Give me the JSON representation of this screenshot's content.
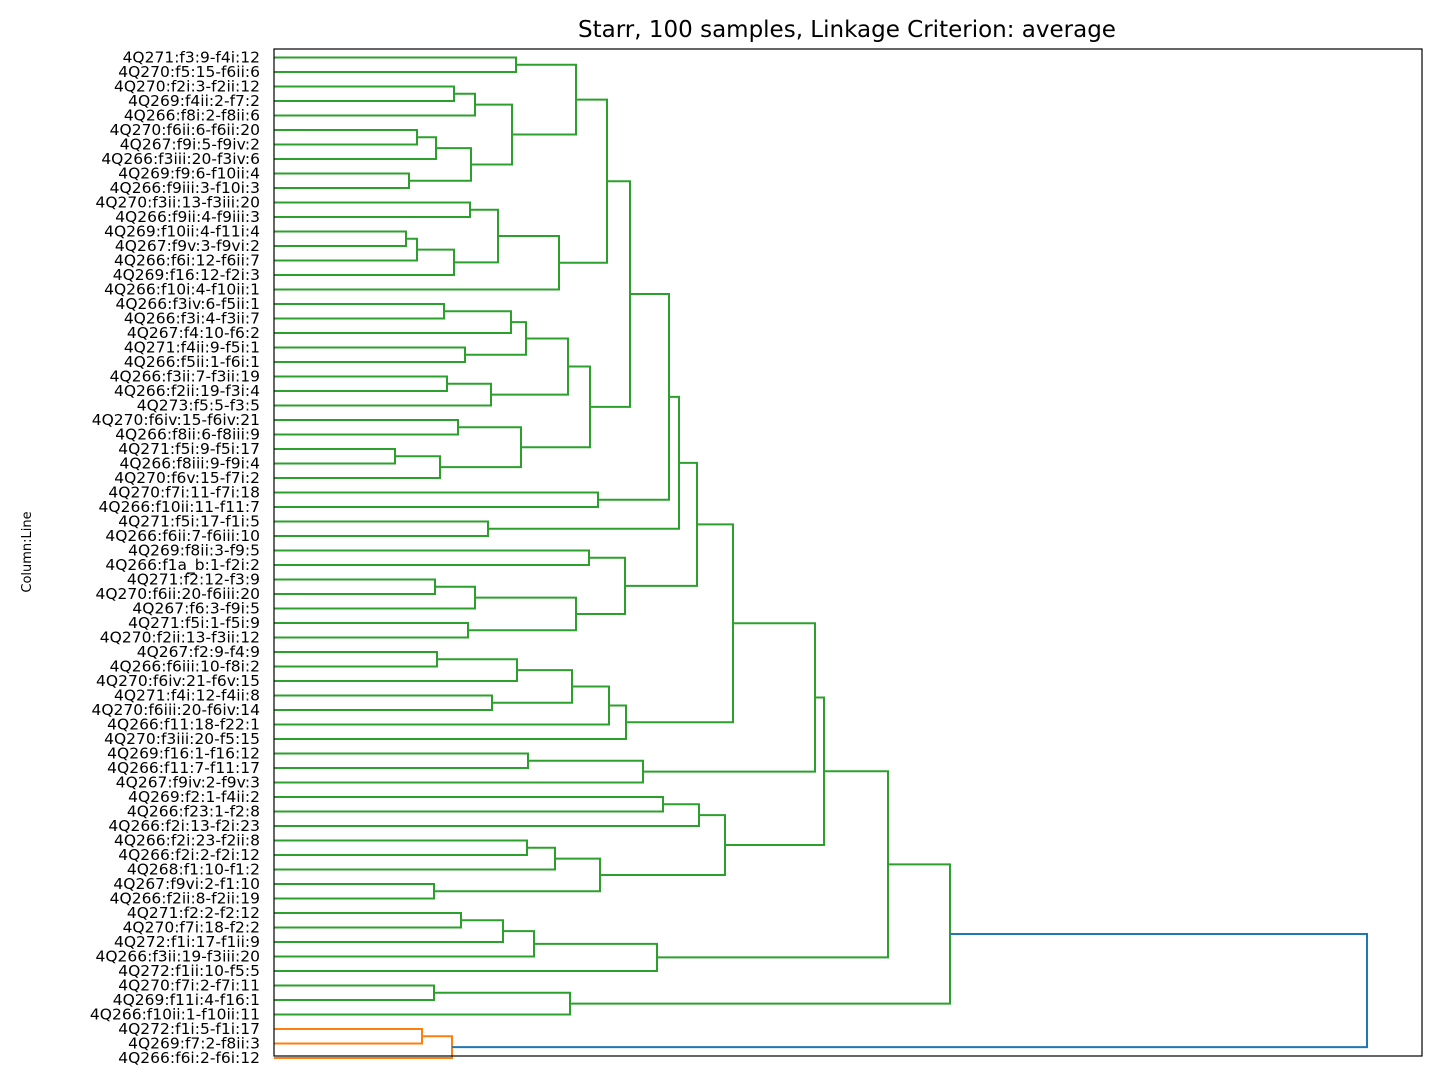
{
  "chart_data": {
    "type": "dendrogram",
    "title": "Starr, 100 samples, Linkage Criterion: average",
    "ylabel": "Column:Line",
    "orientation": "left",
    "xaxis_visible": false,
    "x_range": [
      1440,
      275
    ],
    "colors": {
      "cluster_a": "#2ca02c",
      "cluster_b": "#ff7f0e",
      "root": "#1f77b4"
    },
    "leaves": [
      "4Q271:f3:9-f4i:12",
      "4Q270:f5:15-f6ii:6",
      "4Q270:f2i:3-f2ii:12",
      "4Q269:f4ii:2-f7:2",
      "4Q266:f8i:2-f8ii:6",
      "4Q270:f6ii:6-f6ii:20",
      "4Q267:f9i:5-f9iv:2",
      "4Q266:f3iii:20-f3iv:6",
      "4Q269:f9:6-f10ii:4",
      "4Q266:f9iii:3-f10i:3",
      "4Q270:f3ii:13-f3iii:20",
      "4Q266:f9ii:4-f9iii:3",
      "4Q269:f10ii:4-f11i:4",
      "4Q267:f9v:3-f9vi:2",
      "4Q266:f6i:12-f6ii:7",
      "4Q269:f16:12-f2i:3",
      "4Q266:f10i:4-f10ii:1",
      "4Q266:f3iv:6-f5ii:1",
      "4Q266:f3i:4-f3ii:7",
      "4Q267:f4:10-f6:2",
      "4Q271:f4ii:9-f5i:1",
      "4Q266:f5ii:1-f6i:1",
      "4Q266:f3ii:7-f3ii:19",
      "4Q266:f2ii:19-f3i:4",
      "4Q273:f5:5-f3:5",
      "4Q270:f6iv:15-f6iv:21",
      "4Q266:f8ii:6-f8iii:9",
      "4Q271:f5i:9-f5i:17",
      "4Q266:f8iii:9-f9i:4",
      "4Q270:f6v:15-f7i:2",
      "4Q270:f7i:11-f7i:18",
      "4Q266:f10ii:11-f11:7",
      "4Q271:f5i:17-f1i:5",
      "4Q266:f6ii:7-f6iii:10",
      "4Q269:f8ii:3-f9:5",
      "4Q266:f1a_b:1-f2i:2",
      "4Q271:f2:12-f3:9",
      "4Q270:f6ii:20-f6iii:20",
      "4Q267:f6:3-f9i:5",
      "4Q271:f5i:1-f5i:9",
      "4Q270:f2ii:13-f3ii:12",
      "4Q267:f2:9-f4:9",
      "4Q266:f6iii:10-f8i:2",
      "4Q270:f6iv:21-f6v:15",
      "4Q271:f4i:12-f4ii:8",
      "4Q270:f6iii:20-f6iv:14",
      "4Q266:f11:18-f22:1",
      "4Q270:f3iii:20-f5:15",
      "4Q269:f16:1-f16:12",
      "4Q266:f11:7-f11:17",
      "4Q267:f9iv:2-f9v:3",
      "4Q269:f2:1-f4ii:2",
      "4Q266:f23:1-f2:8",
      "4Q266:f2i:13-f2i:23",
      "4Q266:f2i:23-f2ii:8",
      "4Q266:f2i:2-f2i:12",
      "4Q268:f1:10-f1:2",
      "4Q267:f9vi:2-f1:10",
      "4Q266:f2ii:8-f2ii:19",
      "4Q271:f2:2-f2:12",
      "4Q270:f7i:18-f2:2",
      "4Q272:f1i:17-f1ii:9",
      "4Q266:f3ii:19-f3iii:20",
      "4Q272:f1ii:10-f5:5",
      "4Q270:f7i:2-f7i:11",
      "4Q269:f11i:4-f16:1",
      "4Q266:f10ii:1-f10ii:11",
      "4Q272:f1i:5-f1i:17",
      "4Q269:f7:2-f8ii:3",
      "4Q266:f6i:2-f6i:12"
    ],
    "merges": [
      {
        "a": "L0",
        "b": "L1",
        "h": 516,
        "id": "A",
        "c": "g"
      },
      {
        "a": "L2",
        "b": "L3",
        "h": 454,
        "id": "B",
        "c": "g"
      },
      {
        "a": "B",
        "b": "L4",
        "h": 475,
        "id": "C",
        "c": "g"
      },
      {
        "a": "L5",
        "b": "L6",
        "h": 417,
        "id": "D",
        "c": "g"
      },
      {
        "a": "D",
        "b": "L7",
        "h": 436,
        "id": "E",
        "c": "g"
      },
      {
        "a": "L8",
        "b": "L9",
        "h": 409,
        "id": "F",
        "c": "g"
      },
      {
        "a": "E",
        "b": "F",
        "h": 471,
        "id": "G",
        "c": "g"
      },
      {
        "a": "C",
        "b": "G",
        "h": 512,
        "id": "H",
        "c": "g"
      },
      {
        "a": "A",
        "b": "H",
        "h": 576,
        "id": "I",
        "c": "g"
      },
      {
        "a": "L10",
        "b": "L11",
        "h": 470,
        "id": "J",
        "c": "g"
      },
      {
        "a": "L12",
        "b": "L13",
        "h": 406,
        "id": "K",
        "c": "g"
      },
      {
        "a": "K",
        "b": "L14",
        "h": 417,
        "id": "L",
        "c": "g"
      },
      {
        "a": "L",
        "b": "L15",
        "h": 454,
        "id": "M",
        "c": "g"
      },
      {
        "a": "J",
        "b": "M",
        "h": 498,
        "id": "N",
        "c": "g"
      },
      {
        "a": "N",
        "b": "L16",
        "h": 559,
        "id": "O",
        "c": "g"
      },
      {
        "a": "I",
        "b": "O",
        "h": 607,
        "id": "P",
        "c": "g"
      },
      {
        "a": "L17",
        "b": "L18",
        "h": 444,
        "id": "Q",
        "c": "g"
      },
      {
        "a": "Q",
        "b": "L19",
        "h": 511,
        "id": "R",
        "c": "g"
      },
      {
        "a": "L20",
        "b": "L21",
        "h": 465,
        "id": "S",
        "c": "g"
      },
      {
        "a": "R",
        "b": "S",
        "h": 526,
        "id": "T",
        "c": "g"
      },
      {
        "a": "L22",
        "b": "L23",
        "h": 447,
        "id": "U",
        "c": "g"
      },
      {
        "a": "U",
        "b": "L24",
        "h": 491,
        "id": "V",
        "c": "g"
      },
      {
        "a": "T",
        "b": "V",
        "h": 568,
        "id": "W",
        "c": "g"
      },
      {
        "a": "L25",
        "b": "L26",
        "h": 458,
        "id": "X",
        "c": "g"
      },
      {
        "a": "L27",
        "b": "L28",
        "h": 395,
        "id": "Y",
        "c": "g"
      },
      {
        "a": "Y",
        "b": "L29",
        "h": 440,
        "id": "Z",
        "c": "g"
      },
      {
        "a": "X",
        "b": "Z",
        "h": 521,
        "id": "AA",
        "c": "g"
      },
      {
        "a": "W",
        "b": "AA",
        "h": 590,
        "id": "AB",
        "c": "g"
      },
      {
        "a": "P",
        "b": "AB",
        "h": 630,
        "id": "AC",
        "c": "g"
      },
      {
        "a": "L30",
        "b": "L31",
        "h": 598,
        "id": "AD",
        "c": "g"
      },
      {
        "a": "AC",
        "b": "AD",
        "h": 669,
        "id": "AE",
        "c": "g"
      },
      {
        "a": "L32",
        "b": "L33",
        "h": 488,
        "id": "AF",
        "c": "g"
      },
      {
        "a": "AE",
        "b": "AF",
        "h": 679,
        "id": "AG",
        "c": "g"
      },
      {
        "a": "L34",
        "b": "L35",
        "h": 589,
        "id": "AH",
        "c": "g"
      },
      {
        "a": "L36",
        "b": "L37",
        "h": 435,
        "id": "AI",
        "c": "g"
      },
      {
        "a": "AI",
        "b": "L38",
        "h": 475,
        "id": "AJ",
        "c": "g"
      },
      {
        "a": "L39",
        "b": "L40",
        "h": 468,
        "id": "AK",
        "c": "g"
      },
      {
        "a": "AJ",
        "b": "AK",
        "h": 576,
        "id": "AL",
        "c": "g"
      },
      {
        "a": "AH",
        "b": "AL",
        "h": 625,
        "id": "AM",
        "c": "g"
      },
      {
        "a": "AG",
        "b": "AM",
        "h": 697,
        "id": "AN",
        "c": "g"
      },
      {
        "a": "L41",
        "b": "L42",
        "h": 437,
        "id": "AO",
        "c": "g"
      },
      {
        "a": "AO",
        "b": "L43",
        "h": 517,
        "id": "AP",
        "c": "g"
      },
      {
        "a": "L44",
        "b": "L45",
        "h": 492,
        "id": "AQ",
        "c": "g"
      },
      {
        "a": "AP",
        "b": "AQ",
        "h": 572,
        "id": "AR",
        "c": "g"
      },
      {
        "a": "AR",
        "b": "L46",
        "h": 609,
        "id": "AS",
        "c": "g"
      },
      {
        "a": "AS",
        "b": "L47",
        "h": 626,
        "id": "AT",
        "c": "g"
      },
      {
        "a": "AN",
        "b": "AT",
        "h": 733,
        "id": "AU",
        "c": "g"
      },
      {
        "a": "L48",
        "b": "L49",
        "h": 528,
        "id": "AV",
        "c": "g"
      },
      {
        "a": "AV",
        "b": "L50",
        "h": 643,
        "id": "AW",
        "c": "g"
      },
      {
        "a": "AU",
        "b": "AW",
        "h": 815,
        "id": "AX",
        "c": "g"
      },
      {
        "a": "L51",
        "b": "L52",
        "h": 663,
        "id": "AY",
        "c": "g"
      },
      {
        "a": "AY",
        "b": "L53",
        "h": 699,
        "id": "AZ",
        "c": "g"
      },
      {
        "a": "L54",
        "b": "L55",
        "h": 527,
        "id": "BA",
        "c": "g"
      },
      {
        "a": "BA",
        "b": "L56",
        "h": 555,
        "id": "BB",
        "c": "g"
      },
      {
        "a": "L57",
        "b": "L58",
        "h": 434,
        "id": "BC",
        "c": "g"
      },
      {
        "a": "BB",
        "b": "BC",
        "h": 600,
        "id": "BD",
        "c": "g"
      },
      {
        "a": "AZ",
        "b": "BD",
        "h": 725,
        "id": "BE",
        "c": "g"
      },
      {
        "a": "AX",
        "b": "BE",
        "h": 824,
        "id": "BF",
        "c": "g"
      },
      {
        "a": "L59",
        "b": "L60",
        "h": 461,
        "id": "BG",
        "c": "g"
      },
      {
        "a": "BG",
        "b": "L61",
        "h": 503,
        "id": "BH",
        "c": "g"
      },
      {
        "a": "BH",
        "b": "L62",
        "h": 534,
        "id": "BI",
        "c": "g"
      },
      {
        "a": "BI",
        "b": "L63",
        "h": 657,
        "id": "BJ",
        "c": "g"
      },
      {
        "a": "BF",
        "b": "BJ",
        "h": 888,
        "id": "BK",
        "c": "g"
      },
      {
        "a": "L64",
        "b": "L65",
        "h": 434,
        "id": "BL",
        "c": "g"
      },
      {
        "a": "BL",
        "b": "L66",
        "h": 570,
        "id": "BM",
        "c": "g"
      },
      {
        "a": "BK",
        "b": "BM",
        "h": 950,
        "id": "BN",
        "c": "g"
      },
      {
        "a": "L67",
        "b": "L68",
        "h": 422,
        "id": "BO",
        "c": "o"
      },
      {
        "a": "BO",
        "b": "L69",
        "h": 452,
        "id": "BP",
        "c": "o"
      },
      {
        "a": "BN",
        "b": "BP",
        "h": 1367,
        "id": "ROOT",
        "c": "b"
      }
    ]
  }
}
